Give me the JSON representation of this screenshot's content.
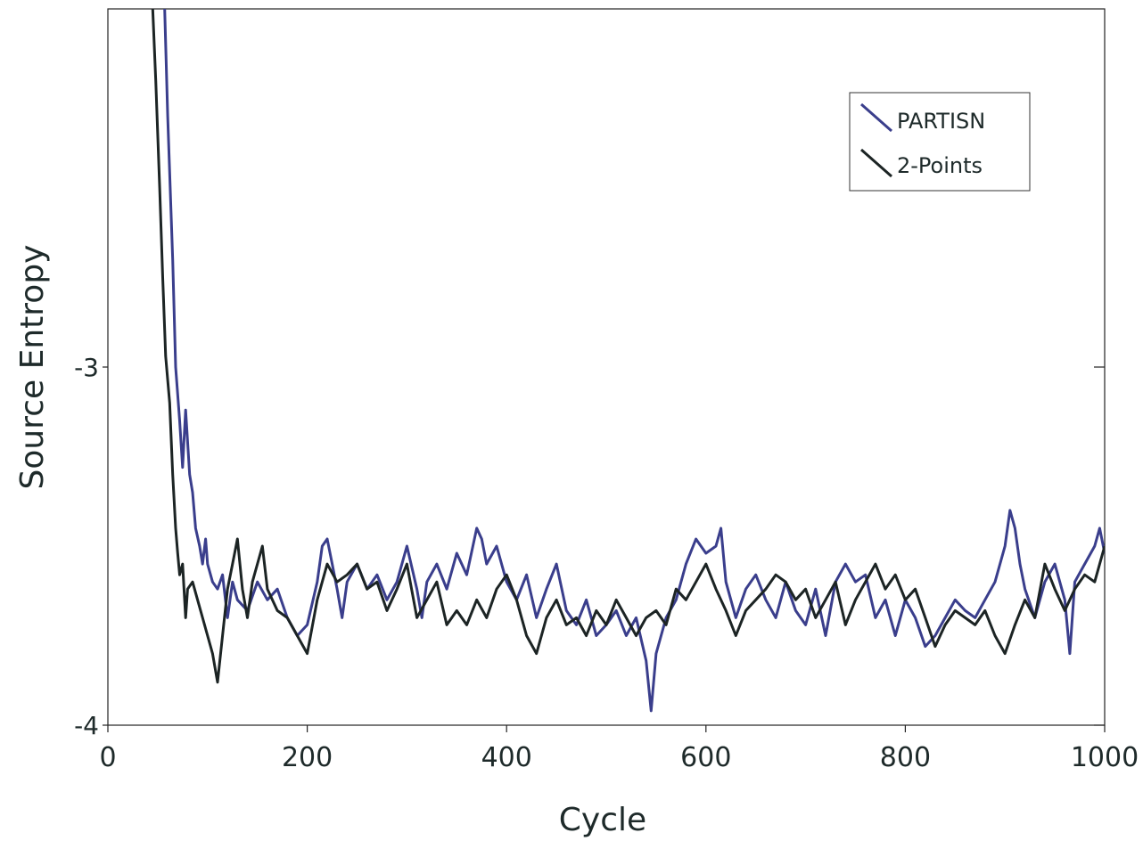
{
  "chart_data": {
    "type": "line",
    "title": "",
    "xlabel": "Cycle",
    "ylabel": "Source Entropy",
    "xlim": [
      0,
      1000
    ],
    "ylim": [
      -4,
      -2
    ],
    "x_ticks": [
      0,
      200,
      400,
      600,
      800,
      1000
    ],
    "x_tick_labels": [
      "0",
      "200",
      "400",
      "600",
      "800",
      "1000"
    ],
    "y_ticks": [
      -4,
      -3
    ],
    "y_tick_labels": [
      "-4",
      "-3"
    ],
    "grid": false,
    "legend_position": "top-right",
    "series": [
      {
        "name": "PARTISN",
        "color": "#3a3e8c",
        "x": [
          57,
          60,
          65,
          68,
          72,
          75,
          78,
          82,
          85,
          88,
          92,
          95,
          98,
          100,
          105,
          110,
          115,
          120,
          125,
          130,
          140,
          150,
          160,
          170,
          180,
          190,
          200,
          210,
          215,
          220,
          225,
          230,
          235,
          240,
          250,
          260,
          270,
          280,
          290,
          300,
          310,
          315,
          320,
          330,
          340,
          350,
          360,
          370,
          375,
          380,
          390,
          400,
          410,
          420,
          430,
          440,
          450,
          460,
          470,
          480,
          490,
          500,
          510,
          520,
          530,
          540,
          545,
          550,
          560,
          570,
          580,
          590,
          600,
          610,
          615,
          620,
          630,
          640,
          650,
          660,
          670,
          680,
          690,
          700,
          710,
          720,
          730,
          740,
          750,
          760,
          770,
          780,
          790,
          800,
          810,
          820,
          830,
          840,
          850,
          860,
          870,
          880,
          890,
          900,
          905,
          910,
          915,
          920,
          930,
          940,
          950,
          960,
          965,
          970,
          980,
          990,
          995,
          1000
        ],
        "y": [
          -2.0,
          -2.3,
          -2.7,
          -3.0,
          -3.15,
          -3.28,
          -3.12,
          -3.3,
          -3.35,
          -3.45,
          -3.5,
          -3.55,
          -3.48,
          -3.55,
          -3.6,
          -3.62,
          -3.58,
          -3.7,
          -3.6,
          -3.65,
          -3.68,
          -3.6,
          -3.65,
          -3.62,
          -3.7,
          -3.75,
          -3.72,
          -3.6,
          -3.5,
          -3.48,
          -3.55,
          -3.62,
          -3.7,
          -3.6,
          -3.55,
          -3.62,
          -3.58,
          -3.65,
          -3.6,
          -3.5,
          -3.62,
          -3.7,
          -3.6,
          -3.55,
          -3.62,
          -3.52,
          -3.58,
          -3.45,
          -3.48,
          -3.55,
          -3.5,
          -3.6,
          -3.65,
          -3.58,
          -3.7,
          -3.62,
          -3.55,
          -3.68,
          -3.72,
          -3.65,
          -3.75,
          -3.72,
          -3.68,
          -3.75,
          -3.7,
          -3.82,
          -3.96,
          -3.8,
          -3.7,
          -3.65,
          -3.55,
          -3.48,
          -3.52,
          -3.5,
          -3.45,
          -3.6,
          -3.7,
          -3.62,
          -3.58,
          -3.65,
          -3.7,
          -3.6,
          -3.68,
          -3.72,
          -3.62,
          -3.75,
          -3.6,
          -3.55,
          -3.6,
          -3.58,
          -3.7,
          -3.65,
          -3.75,
          -3.65,
          -3.7,
          -3.78,
          -3.75,
          -3.7,
          -3.65,
          -3.68,
          -3.7,
          -3.65,
          -3.6,
          -3.5,
          -3.4,
          -3.45,
          -3.55,
          -3.62,
          -3.7,
          -3.6,
          -3.55,
          -3.65,
          -3.8,
          -3.6,
          -3.55,
          -3.5,
          -3.45,
          -3.52
        ]
      },
      {
        "name": "2-Points",
        "color": "#1c2424",
        "x": [
          45,
          48,
          52,
          55,
          58,
          62,
          65,
          68,
          70,
          72,
          75,
          78,
          80,
          85,
          90,
          95,
          100,
          105,
          110,
          115,
          120,
          125,
          130,
          135,
          140,
          145,
          150,
          155,
          160,
          170,
          180,
          190,
          200,
          210,
          220,
          230,
          240,
          250,
          260,
          270,
          280,
          290,
          300,
          310,
          320,
          330,
          340,
          350,
          360,
          370,
          380,
          390,
          400,
          410,
          420,
          430,
          440,
          450,
          460,
          470,
          480,
          490,
          500,
          510,
          520,
          530,
          540,
          550,
          560,
          570,
          580,
          590,
          600,
          610,
          620,
          630,
          640,
          650,
          660,
          670,
          680,
          690,
          700,
          710,
          720,
          730,
          740,
          750,
          760,
          770,
          780,
          790,
          800,
          810,
          820,
          830,
          840,
          850,
          860,
          870,
          880,
          890,
          900,
          910,
          920,
          930,
          940,
          950,
          960,
          970,
          980,
          990,
          1000
        ],
        "y": [
          -2.0,
          -2.2,
          -2.5,
          -2.75,
          -2.97,
          -3.1,
          -3.3,
          -3.45,
          -3.52,
          -3.58,
          -3.55,
          -3.7,
          -3.62,
          -3.6,
          -3.65,
          -3.7,
          -3.75,
          -3.8,
          -3.88,
          -3.75,
          -3.62,
          -3.55,
          -3.48,
          -3.62,
          -3.7,
          -3.6,
          -3.55,
          -3.5,
          -3.62,
          -3.68,
          -3.7,
          -3.75,
          -3.8,
          -3.65,
          -3.55,
          -3.6,
          -3.58,
          -3.55,
          -3.62,
          -3.6,
          -3.68,
          -3.62,
          -3.55,
          -3.7,
          -3.65,
          -3.6,
          -3.72,
          -3.68,
          -3.72,
          -3.65,
          -3.7,
          -3.62,
          -3.58,
          -3.65,
          -3.75,
          -3.8,
          -3.7,
          -3.65,
          -3.72,
          -3.7,
          -3.75,
          -3.68,
          -3.72,
          -3.65,
          -3.7,
          -3.75,
          -3.7,
          -3.68,
          -3.72,
          -3.62,
          -3.65,
          -3.6,
          -3.55,
          -3.62,
          -3.68,
          -3.75,
          -3.68,
          -3.65,
          -3.62,
          -3.58,
          -3.6,
          -3.65,
          -3.62,
          -3.7,
          -3.65,
          -3.6,
          -3.72,
          -3.65,
          -3.6,
          -3.55,
          -3.62,
          -3.58,
          -3.65,
          -3.62,
          -3.7,
          -3.78,
          -3.72,
          -3.68,
          -3.7,
          -3.72,
          -3.68,
          -3.75,
          -3.8,
          -3.72,
          -3.65,
          -3.7,
          -3.55,
          -3.62,
          -3.68,
          -3.62,
          -3.58,
          -3.6,
          -3.5
        ]
      }
    ]
  }
}
